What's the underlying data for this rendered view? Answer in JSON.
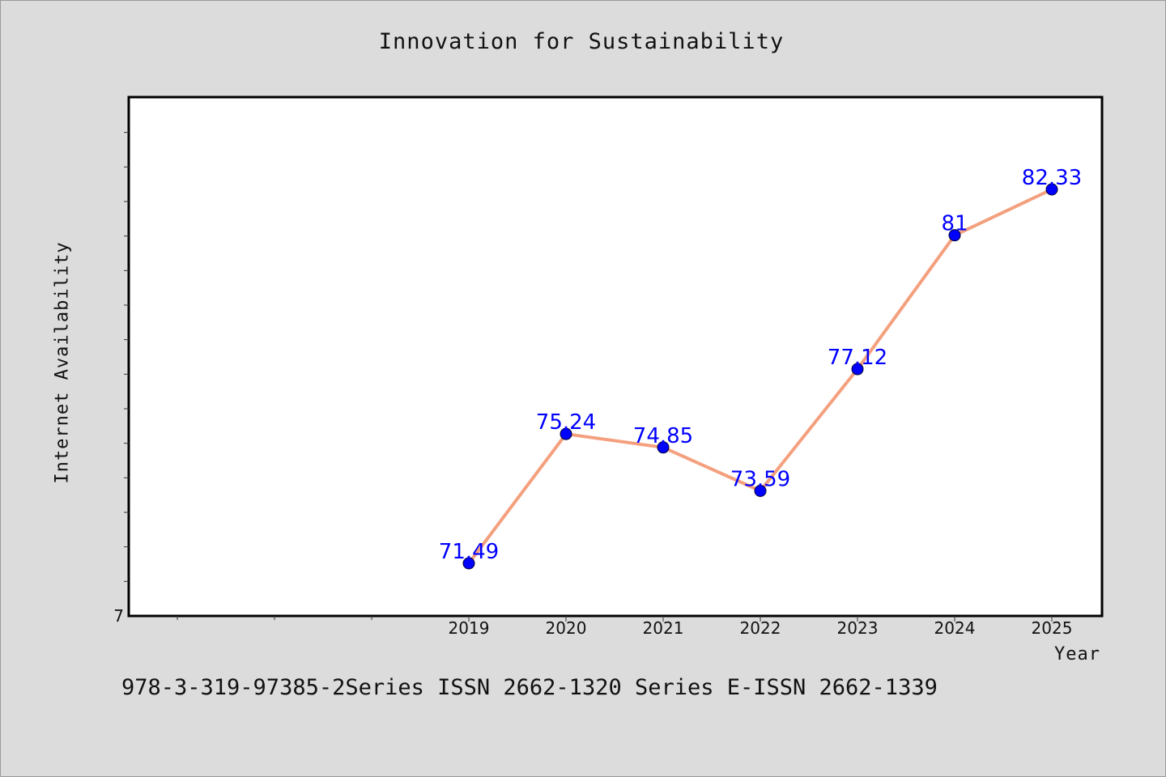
{
  "chart_data": {
    "type": "line",
    "title": "Innovation for Sustainability",
    "xlabel": "Year",
    "ylabel": "Internet Availability",
    "categories": [
      "2019",
      "2020",
      "2021",
      "2022",
      "2023",
      "2024",
      "2025"
    ],
    "values": [
      71.49,
      75.24,
      74.85,
      73.59,
      77.12,
      81,
      82.33
    ],
    "data_labels": [
      "71.49",
      "75.24",
      "74.85",
      "73.59",
      "77.12",
      "81",
      "82.33"
    ],
    "y_tick_labels": [
      "7"
    ],
    "ylim": [
      71.49,
      82.33
    ],
    "grid": false,
    "line_color": "#f4a07e",
    "marker_color": "#0000ff",
    "label_color": "#0000ff"
  },
  "footer": {
    "text": "978-3-319-97385-2Series ISSN 2662-1320 Series E-ISSN 2662-1339"
  }
}
